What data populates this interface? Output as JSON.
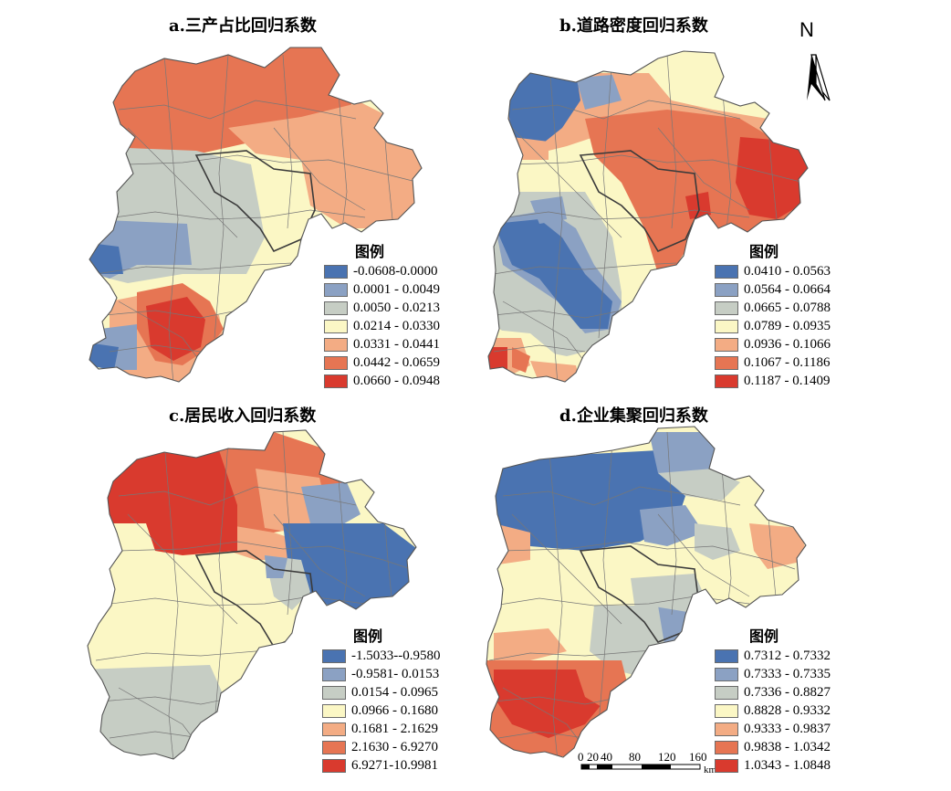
{
  "colors": {
    "blue": "#4a73b1",
    "blue_light": "#8ba1c3",
    "gray": "#c6cdc4",
    "cream": "#fbf7c5",
    "peach": "#f3ac84",
    "orange": "#e67553",
    "red": "#d93a2e",
    "boundary": "#666666",
    "province": "#3b3b3b"
  },
  "panels": [
    {
      "id": "a",
      "title": "a.三产占比回归系数",
      "legend_title": "图例",
      "legend_classes": [
        {
          "label": "-0.0608-0.0000",
          "color": "#4a73b1"
        },
        {
          "label": "0.0001 - 0.0049",
          "color": "#8ba1c3"
        },
        {
          "label": "0.0050 - 0.0213",
          "color": "#c6cdc4"
        },
        {
          "label": "0.0214 - 0.0330",
          "color": "#fbf7c5"
        },
        {
          "label": "0.0331 - 0.0441",
          "color": "#f3ac84"
        },
        {
          "label": "0.0442 - 0.0659",
          "color": "#e67553"
        },
        {
          "label": "0.0660 - 0.0948",
          "color": "#d93a2e"
        }
      ]
    },
    {
      "id": "b",
      "title": "b.道路密度回归系数",
      "legend_title": "图例",
      "legend_classes": [
        {
          "label": "0.0410 - 0.0563",
          "color": "#4a73b1"
        },
        {
          "label": "0.0564 - 0.0664",
          "color": "#8ba1c3"
        },
        {
          "label": "0.0665 - 0.0788",
          "color": "#c6cdc4"
        },
        {
          "label": "0.0789 - 0.0935",
          "color": "#fbf7c5"
        },
        {
          "label": "0.0936 - 0.1066",
          "color": "#f3ac84"
        },
        {
          "label": "0.1067 - 0.1186",
          "color": "#e67553"
        },
        {
          "label": "0.1187 - 0.1409",
          "color": "#d93a2e"
        }
      ]
    },
    {
      "id": "c",
      "title": "c.居民收入回归系数",
      "legend_title": "图例",
      "legend_classes": [
        {
          "label": "-1.5033--0.9580",
          "color": "#4a73b1"
        },
        {
          "label": "-0.9581- 0.0153",
          "color": "#8ba1c3"
        },
        {
          "label": "0.0154 - 0.0965",
          "color": "#c6cdc4"
        },
        {
          "label": "0.0966 - 0.1680",
          "color": "#fbf7c5"
        },
        {
          "label": "0.1681 - 2.1629",
          "color": "#f3ac84"
        },
        {
          "label": "2.1630 - 6.9270",
          "color": "#e67553"
        },
        {
          "label": "6.9271-10.9981",
          "color": "#d93a2e"
        }
      ]
    },
    {
      "id": "d",
      "title": "d.企业集聚回归系数",
      "legend_title": "图例",
      "legend_classes": [
        {
          "label": "0.7312 - 0.7332",
          "color": "#4a73b1"
        },
        {
          "label": "0.7333 - 0.7335",
          "color": "#8ba1c3"
        },
        {
          "label": "0.7336 - 0.8827",
          "color": "#c6cdc4"
        },
        {
          "label": "0.8828 - 0.9332",
          "color": "#fbf7c5"
        },
        {
          "label": "0.9333 - 0.9837",
          "color": "#f3ac84"
        },
        {
          "label": "0.9838 - 1.0342",
          "color": "#e67553"
        },
        {
          "label": "1.0343 - 1.0848",
          "color": "#d93a2e"
        }
      ]
    }
  ],
  "north_arrow": {
    "label": "N"
  },
  "scale_bar": {
    "ticks": [
      "0",
      "20",
      "40",
      "80",
      "120",
      "160"
    ],
    "unit": "km"
  }
}
